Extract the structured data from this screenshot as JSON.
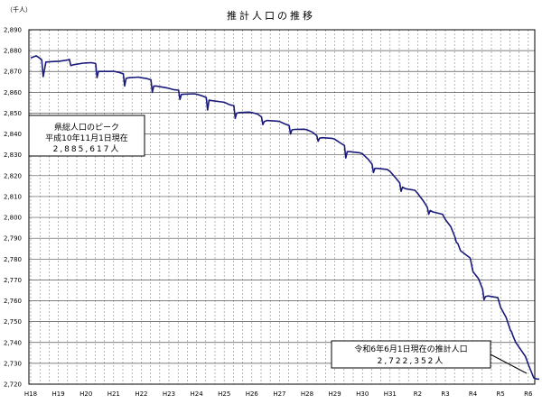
{
  "chart_data": {
    "type": "line",
    "title": "推計人口の推移",
    "ylabel": "（千人）",
    "xlabel": "",
    "ylim": [
      2720,
      2890
    ],
    "yticks": [
      2890,
      2880,
      2870,
      2860,
      2850,
      2840,
      2830,
      2820,
      2810,
      2800,
      2790,
      2780,
      2770,
      2760,
      2750,
      2740,
      2730,
      2720
    ],
    "ytick_labels": [
      "2,890",
      "2,880",
      "2,870",
      "2,860",
      "2,850",
      "2,840",
      "2,830",
      "2,820",
      "2,810",
      "2,800",
      "2,790",
      "2,780",
      "2,770",
      "2,760",
      "2,750",
      "2,740",
      "2,730",
      "2,720"
    ],
    "xticks": [
      "H18",
      "H19",
      "H20",
      "H21",
      "H22",
      "H23",
      "H24",
      "H25",
      "H26",
      "H27",
      "H28",
      "H29",
      "H30",
      "H31",
      "R2",
      "R3",
      "R4",
      "R5",
      "R6"
    ],
    "grid": true,
    "series": [
      {
        "color": "#1a1a7a",
        "x": [
          0.0,
          0.2,
          0.35,
          0.4,
          0.45,
          0.55,
          0.9,
          1.0,
          1.2,
          1.35,
          1.4,
          1.45,
          1.55,
          1.9,
          2.0,
          2.2,
          2.35,
          2.4,
          2.45,
          2.55,
          2.9,
          3.0,
          3.2,
          3.35,
          3.4,
          3.45,
          3.55,
          3.9,
          4.0,
          4.2,
          4.35,
          4.4,
          4.45,
          4.55,
          4.9,
          5.0,
          5.2,
          5.35,
          5.4,
          5.45,
          5.55,
          5.9,
          6.0,
          6.2,
          6.35,
          6.4,
          6.45,
          6.55,
          6.9,
          7.0,
          7.2,
          7.35,
          7.4,
          7.45,
          7.55,
          7.9,
          8.0,
          8.2,
          8.35,
          8.4,
          8.45,
          8.55,
          8.9,
          9.0,
          9.2,
          9.35,
          9.4,
          9.45,
          9.55,
          9.9,
          10.0,
          10.2,
          10.35,
          10.4,
          10.45,
          10.55,
          10.9,
          11.0,
          11.2,
          11.35,
          11.4,
          11.45,
          11.55,
          11.9,
          12.0,
          12.2,
          12.35,
          12.4,
          12.45,
          12.55,
          12.9,
          13.0,
          13.2,
          13.35,
          13.4,
          13.45,
          13.55,
          13.9,
          14.0,
          14.2,
          14.35,
          14.4,
          14.45,
          14.55,
          14.9,
          15.0,
          15.2,
          15.35,
          15.4,
          15.45,
          15.55,
          15.9,
          16.0,
          16.2,
          16.35,
          16.4,
          16.45,
          16.55,
          16.9,
          17.0,
          17.2,
          17.35,
          17.4,
          17.45,
          17.55,
          17.9,
          18.0,
          18.2,
          18.3,
          18.4
        ],
        "y": [
          2876.5,
          2877.5,
          2876.2,
          2875.5,
          2867.5,
          2874.5,
          2874.8,
          2874.8,
          2875.2,
          2875.5,
          2875.8,
          2872.8,
          2873.2,
          2874.0,
          2874.1,
          2874.2,
          2873.8,
          2867.0,
          2870.0,
          2870.0,
          2870.0,
          2870.1,
          2869.5,
          2868.9,
          2863.0,
          2866.7,
          2867.0,
          2867.3,
          2867.0,
          2866.6,
          2866.0,
          2860.0,
          2863.0,
          2863.0,
          2862.2,
          2861.9,
          2861.2,
          2861.0,
          2856.5,
          2859.0,
          2859.1,
          2859.3,
          2859.1,
          2858.3,
          2857.5,
          2851.5,
          2856.2,
          2856.0,
          2855.4,
          2855.2,
          2854.0,
          2853.6,
          2847.5,
          2850.0,
          2850.3,
          2850.5,
          2850.3,
          2849.6,
          2848.2,
          2844.5,
          2846.0,
          2846.5,
          2846.2,
          2846.0,
          2844.8,
          2844.0,
          2840.0,
          2842.0,
          2842.2,
          2842.3,
          2842.0,
          2840.8,
          2839.2,
          2836.5,
          2838.0,
          2838.2,
          2837.9,
          2837.5,
          2835.7,
          2834.5,
          2828.5,
          2831.5,
          2831.5,
          2831.0,
          2830.5,
          2828.0,
          2825.5,
          2821.5,
          2823.5,
          2823.5,
          2823.0,
          2822.0,
          2819.0,
          2816.5,
          2812.5,
          2814.5,
          2813.8,
          2813.0,
          2811.5,
          2808.0,
          2804.8,
          2801.5,
          2803.3,
          2802.6,
          2801.5,
          2799.0,
          2795.5,
          2790.5,
          2788.0,
          2787.5,
          2784.0,
          2780.5,
          2774.0,
          2770.6,
          2765.5,
          2760.5,
          2762.0,
          2762.3,
          2761.5,
          2756.8,
          2752.0,
          2746.0,
          2745.0,
          2743.0,
          2740.0,
          2733.3,
          2729.5,
          2723.0,
          2722.5,
          2722.4
        ]
      }
    ],
    "annotations": [
      {
        "lines": [
          "県総人口のピーク",
          "平成10年11月1日現在",
          "2,885,617人"
        ]
      },
      {
        "lines": [
          "令和6年6月1日現在の推計人口",
          "2,722,352人"
        ]
      }
    ]
  }
}
